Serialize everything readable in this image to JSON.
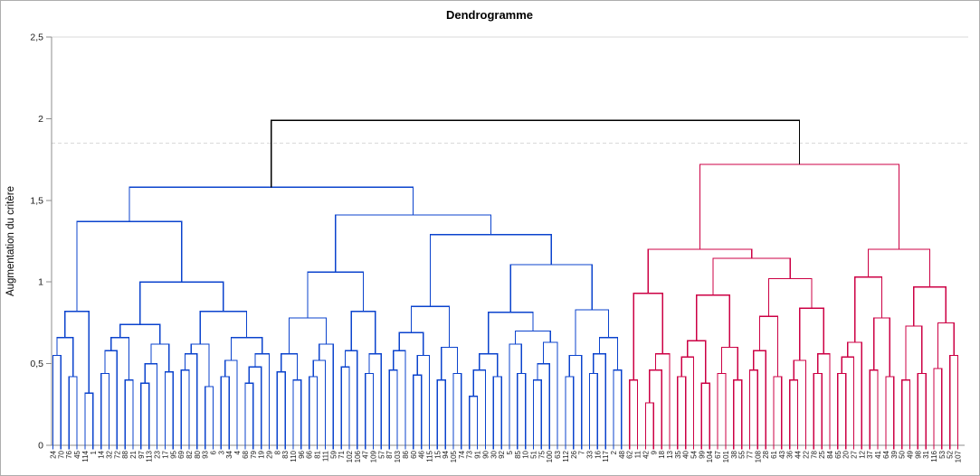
{
  "title": "Dendrogramme",
  "y_axis": {
    "label": "Augmentation du critère",
    "ticks": [
      "0",
      "0,5",
      "1",
      "1,5",
      "2",
      "2,5"
    ],
    "tick_values": [
      0,
      0.5,
      1,
      1.5,
      2,
      2.5
    ],
    "max": 2.5
  },
  "colors": {
    "cluster1": "#0b43cd",
    "cluster2": "#cc0044",
    "root_link": "#000000",
    "gridline": "#d9d9d9",
    "axis": "#8c8c8c",
    "frame": "#adadad"
  },
  "chart_data": {
    "type": "dendrogram",
    "title": "Dendrogramme",
    "ylabel": "Augmentation du critère",
    "ylim": [
      0,
      2.5
    ],
    "grid": "top line at 2.5 solid, truncation line at 1.85 dashed",
    "threshold_line": 1.85,
    "root_height": 1.99,
    "cluster_split_index": 72,
    "clusters": [
      {
        "name": "cluster-1",
        "color": "#0b43cd",
        "leaf_count": 72,
        "root_height": 1.58
      },
      {
        "name": "cluster-2",
        "color": "#cc0044",
        "leaf_count": 42,
        "root_height": 1.72
      }
    ],
    "leaves": [
      "24",
      "70",
      "76",
      "45",
      "114",
      "1",
      "14",
      "32",
      "72",
      "88",
      "21",
      "97",
      "113",
      "23",
      "17",
      "95",
      "69",
      "82",
      "80",
      "93",
      "6",
      "3",
      "34",
      "4",
      "68",
      "79",
      "19",
      "29",
      "8",
      "83",
      "110",
      "96",
      "66",
      "81",
      "111",
      "59",
      "71",
      "102",
      "106",
      "47",
      "109",
      "57",
      "87",
      "103",
      "86",
      "60",
      "46",
      "115",
      "15",
      "94",
      "105",
      "74",
      "73",
      "91",
      "90",
      "30",
      "92",
      "5",
      "85",
      "10",
      "51",
      "75",
      "100",
      "63",
      "112",
      "26",
      "7",
      "33",
      "16",
      "117",
      "2",
      "48",
      "62",
      "11",
      "42",
      "9",
      "18",
      "13",
      "35",
      "40",
      "54",
      "99",
      "104",
      "67",
      "101",
      "38",
      "55",
      "77",
      "108",
      "28",
      "61",
      "43",
      "36",
      "44",
      "22",
      "78",
      "25",
      "84",
      "65",
      "20",
      "27",
      "12",
      "37",
      "41",
      "64",
      "39",
      "50",
      "49",
      "98",
      "31",
      "116",
      "53",
      "52",
      "107"
    ],
    "merge_heights": [
      0.55,
      0.66,
      0.42,
      0.82,
      0.32,
      1.37,
      0.44,
      0.58,
      0.66,
      0.4,
      0.74,
      0.38,
      0.5,
      0.62,
      0.45,
      1.0,
      0.46,
      0.56,
      0.62,
      0.36,
      0.82,
      0.42,
      0.52,
      0.66,
      0.38,
      0.48,
      0.56,
      1.58,
      0.45,
      0.56,
      0.4,
      0.78,
      0.42,
      0.52,
      0.62,
      1.06,
      0.48,
      0.58,
      0.82,
      0.44,
      0.56,
      1.41,
      0.46,
      0.58,
      0.69,
      0.43,
      0.55,
      0.85,
      0.4,
      0.6,
      0.44,
      1.29,
      0.3,
      0.46,
      0.56,
      0.42,
      0.815,
      0.62,
      0.44,
      0.7,
      0.4,
      0.5,
      0.63,
      1.106,
      0.42,
      0.55,
      0.83,
      0.44,
      0.56,
      0.66,
      0.46,
      1.99,
      0.4,
      0.93,
      0.26,
      0.46,
      0.56,
      1.2,
      0.42,
      0.54,
      0.64,
      0.38,
      0.92,
      0.44,
      0.6,
      0.4,
      1.145,
      0.46,
      0.58,
      0.79,
      0.42,
      1.02,
      0.4,
      0.52,
      0.84,
      0.44,
      0.56,
      1.72,
      0.44,
      0.54,
      0.63,
      1.03,
      0.46,
      0.78,
      0.42,
      1.2,
      0.4,
      0.73,
      0.44,
      0.97,
      0.47,
      0.75,
      0.55
    ]
  }
}
